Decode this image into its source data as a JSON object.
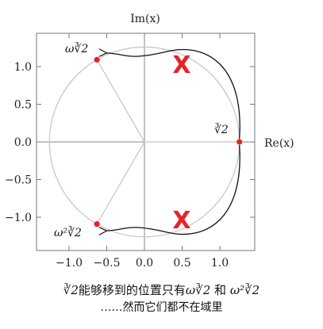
{
  "axes": {
    "x_title": "Re(x)",
    "y_title": "Im(x)",
    "x_ticks": [
      {
        "value": -1.0,
        "label": "−1.0"
      },
      {
        "value": -0.5,
        "label": "−0.5"
      },
      {
        "value": 0.0,
        "label": "0.0"
      },
      {
        "value": 0.5,
        "label": "0.5"
      },
      {
        "value": 1.0,
        "label": "1.0"
      }
    ],
    "y_ticks": [
      {
        "value": 1.0,
        "label": "1.0"
      },
      {
        "value": 0.5,
        "label": "0.5"
      },
      {
        "value": 0.0,
        "label": "0.0"
      },
      {
        "value": -0.5,
        "label": "−0.5"
      },
      {
        "value": -1.0,
        "label": "−1.0"
      }
    ]
  },
  "points": [
    {
      "name": "cube-root-2",
      "label": "∛2",
      "re": 1.26,
      "im": 0.0,
      "color": "#e8222a"
    },
    {
      "name": "omega-cube-root-2",
      "label": "ω∛2",
      "re": -0.63,
      "im": 1.091,
      "color": "#e8222a"
    },
    {
      "name": "omega-squared-cube-root-2",
      "label": "ω²∛2",
      "re": -0.63,
      "im": -1.091,
      "color": "#e8222a"
    }
  ],
  "cross_marks": [
    {
      "symbol": "X",
      "re": 0.5,
      "im": 1.03,
      "color": "#e8222a"
    },
    {
      "symbol": "X",
      "re": 0.5,
      "im": -1.03,
      "color": "#e8222a"
    }
  ],
  "caption": {
    "line1_prefix": "∛2",
    "line1_text": "能够移到的位置只有",
    "line1_mid": "ω∛2",
    "line1_and": "和",
    "line1_end": "ω²∛2",
    "line2": "……然而它们都不在域里"
  }
}
